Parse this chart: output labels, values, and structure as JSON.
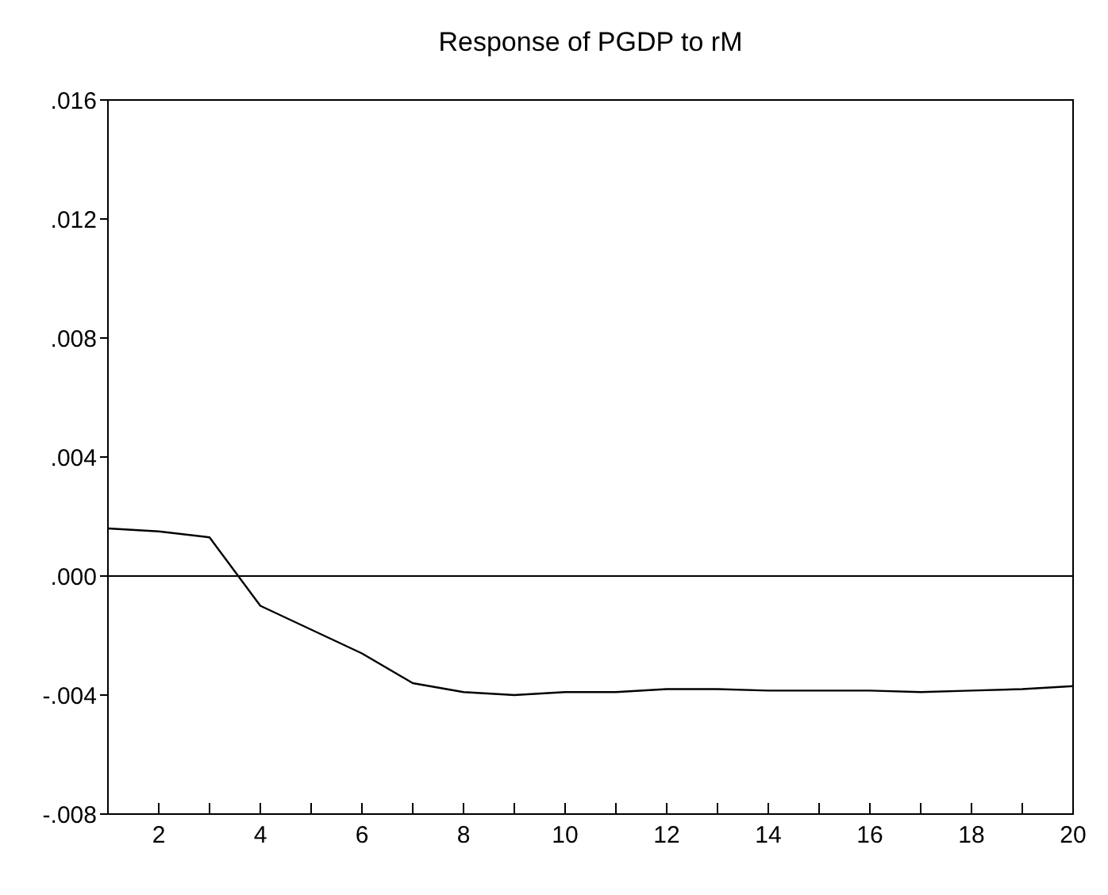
{
  "chart_data": {
    "type": "line",
    "title": "Response of PGDP to rM",
    "x": [
      1,
      2,
      3,
      4,
      5,
      6,
      7,
      8,
      9,
      10,
      11,
      12,
      13,
      14,
      15,
      16,
      17,
      18,
      19,
      20
    ],
    "series": [
      {
        "color": "#000000",
        "values": [
          0.0016,
          0.0015,
          0.0013,
          -0.001,
          -0.0018,
          -0.0026,
          -0.0036,
          -0.0039,
          -0.004,
          -0.0039,
          -0.0039,
          -0.0038,
          -0.0038,
          -0.00385,
          -0.00385,
          -0.00385,
          -0.0039,
          -0.00385,
          -0.0038,
          -0.0037
        ]
      }
    ],
    "xlim": [
      1,
      20
    ],
    "xticks": [
      {
        "value": 1,
        "label": null
      },
      2,
      {
        "value": 3,
        "label": null
      },
      4,
      {
        "value": 5,
        "label": null
      },
      6,
      {
        "value": 7,
        "label": null
      },
      8,
      {
        "value": 9,
        "label": null
      },
      10,
      {
        "value": 11,
        "label": null
      },
      12,
      {
        "value": 13,
        "label": null
      },
      14,
      {
        "value": 15,
        "label": null
      },
      16,
      {
        "value": 17,
        "label": null
      },
      18,
      {
        "value": 19,
        "label": null
      },
      20
    ],
    "ylim": [
      -0.008,
      0.016
    ],
    "yticks": [
      {
        "value": -0.008,
        "label": "-.008"
      },
      {
        "value": -0.004,
        "label": "-.004"
      },
      {
        "value": 0,
        "label": ".000"
      },
      {
        "value": 0.004,
        "label": ".004"
      },
      {
        "value": 0.008,
        "label": ".008"
      },
      {
        "value": 0.012,
        "label": ".012"
      },
      {
        "value": 0.016,
        "label": ".016"
      }
    ],
    "ref_lines": [
      {
        "axis": "y",
        "value": 0,
        "color": "#000000"
      }
    ],
    "grid": false,
    "line_style": "solid",
    "marker": "none"
  }
}
